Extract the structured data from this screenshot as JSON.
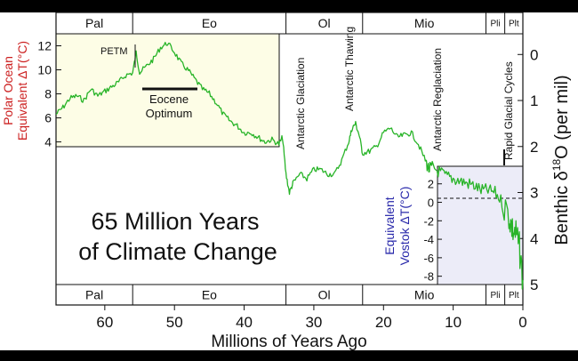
{
  "chart_data": {
    "type": "line",
    "title": "65 Million Years of Climate Change",
    "title_lines": [
      "65 Million Years",
      "of Climate Change"
    ],
    "xlabel": "Millions of Years Ago",
    "xlim": [
      67,
      0
    ],
    "x_ticks": [
      60,
      50,
      40,
      30,
      20,
      10,
      0
    ],
    "epochs": [
      {
        "label": "Pal",
        "start": 67,
        "end": 56
      },
      {
        "label": "Eo",
        "start": 56,
        "end": 34
      },
      {
        "label": "Ol",
        "start": 34,
        "end": 23
      },
      {
        "label": "Mio",
        "start": 23,
        "end": 5.3
      },
      {
        "label": "Pli",
        "start": 5.3,
        "end": 2.6
      },
      {
        "label": "Plt",
        "start": 2.6,
        "end": 0
      }
    ],
    "left_axis": {
      "label_line1": "Polar Ocean",
      "label_line2": "Equivalent  ΔT(°C)",
      "ticks": [
        4,
        6,
        8,
        10,
        12
      ],
      "range": [
        3.6,
        13.0
      ],
      "color": "#cc2020"
    },
    "right_axis": {
      "label": "Benthic δ 18O (per mil)",
      "label_main": "Benthic δ",
      "label_sup": "18",
      "label_end": "O (per mil)",
      "ticks": [
        0,
        1,
        2,
        3,
        4,
        5
      ],
      "range": [
        -0.45,
        5.0
      ]
    },
    "vostok_axis": {
      "label_line1": "Equivalent",
      "label_line2": "Vostok  ΔT(°C)",
      "ticks": [
        2,
        0,
        -2,
        -4,
        -6,
        -8
      ],
      "range": [
        -8.9,
        3.9
      ],
      "color": "#2828aa"
    },
    "annotations": [
      {
        "text": "PETM",
        "x": 55.5
      },
      {
        "text": "Antarctic Glaciation",
        "x": 33.5
      },
      {
        "text": "Antarctic Thawing",
        "x": 25
      },
      {
        "text": "Antarctic Reglaciation",
        "x": 12.5
      },
      {
        "text": "Rapid Glacial Cycles",
        "x": 1.5
      }
    ],
    "eocene_optimum": {
      "line1": "Eocene",
      "line2": "Optimum",
      "from": 53,
      "to": 47
    },
    "series": [
      {
        "name": "Benthic δ18O",
        "color": "#28b428",
        "x": [
          67,
          66,
          65,
          64,
          63,
          62,
          61,
          60,
          59,
          58,
          57,
          56,
          55.5,
          55,
          54,
          53,
          52,
          51,
          50,
          49,
          48,
          47,
          46,
          45,
          44,
          43,
          42,
          41,
          40,
          39,
          38,
          37,
          36,
          35,
          34.5,
          34,
          33.5,
          33,
          32,
          31,
          30,
          29,
          28,
          27,
          26,
          25,
          24.5,
          24,
          23.5,
          23,
          22,
          21,
          20,
          19,
          18,
          17,
          16,
          15,
          14,
          13.5,
          13,
          12,
          11,
          10,
          9,
          8,
          7,
          6,
          5,
          4,
          3,
          2,
          1.5,
          1,
          0.5,
          0
        ],
        "y": [
          1.3,
          1.15,
          0.95,
          0.9,
          1.0,
          0.75,
          0.9,
          0.8,
          0.7,
          0.6,
          0.45,
          0.4,
          -0.05,
          0.4,
          0.25,
          0.1,
          -0.15,
          -0.25,
          -0.05,
          0.2,
          0.35,
          0.55,
          0.75,
          0.85,
          1.05,
          1.3,
          1.45,
          1.55,
          1.7,
          1.7,
          1.8,
          1.9,
          1.85,
          1.95,
          1.8,
          2.6,
          3.0,
          2.8,
          2.6,
          2.7,
          2.5,
          2.5,
          2.6,
          2.6,
          2.3,
          1.9,
          1.6,
          1.5,
          1.75,
          2.15,
          2.1,
          2.0,
          1.7,
          1.6,
          1.8,
          1.75,
          1.7,
          1.95,
          2.3,
          2.5,
          2.45,
          2.55,
          2.65,
          2.7,
          2.75,
          2.8,
          2.85,
          2.95,
          2.95,
          3.0,
          3.2,
          3.5,
          3.8,
          3.9,
          4.2,
          4.9
        ]
      }
    ]
  }
}
